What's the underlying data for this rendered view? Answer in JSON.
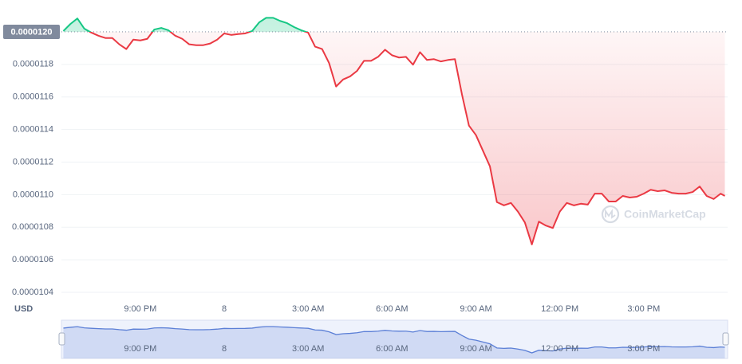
{
  "chart_data": {
    "type": "line",
    "y_unit": "USD",
    "watermark": "CoinMarketCap",
    "reference_line": {
      "value": 1.2e-05,
      "label": "0.0000120"
    },
    "color_above": "#16c784",
    "color_below": "#ea3943",
    "navigator_color": "#5b7fd6",
    "grid": true,
    "xlim": [
      18.18,
      42
    ],
    "xticks": [
      {
        "value": 21,
        "label": "9:00 PM"
      },
      {
        "value": 24,
        "label": "8"
      },
      {
        "value": 27,
        "label": "3:00 AM"
      },
      {
        "value": 30,
        "label": "6:00 AM"
      },
      {
        "value": 33,
        "label": "9:00 AM"
      },
      {
        "value": 36,
        "label": "12:00 PM"
      },
      {
        "value": 39,
        "label": "3:00 PM"
      }
    ],
    "ylim": [
      1.04e-05,
      1.21e-05
    ],
    "yticks": [
      1.04e-05,
      1.06e-05,
      1.08e-05,
      {
        "value": 1.1e-05,
        "label": "0.0000110"
      },
      1.12e-05,
      1.14e-05,
      1.16e-05,
      1.18e-05
    ],
    "x": [
      18.25,
      18.5,
      18.75,
      19,
      19.25,
      19.5,
      19.75,
      20,
      20.25,
      20.5,
      20.75,
      21,
      21.25,
      21.5,
      21.75,
      22,
      22.25,
      22.5,
      22.75,
      23,
      23.25,
      23.5,
      23.75,
      24,
      24.25,
      24.5,
      24.75,
      25,
      25.25,
      25.5,
      25.75,
      26,
      26.25,
      26.5,
      26.75,
      27,
      27.25,
      27.5,
      27.75,
      28,
      28.25,
      28.5,
      28.75,
      29,
      29.25,
      29.5,
      29.75,
      30,
      30.25,
      30.5,
      30.75,
      31,
      31.25,
      31.5,
      31.75,
      32,
      32.25,
      32.5,
      32.75,
      33,
      33.25,
      33.5,
      33.75,
      34,
      34.25,
      34.5,
      34.75,
      35,
      35.25,
      35.5,
      35.75,
      36,
      36.25,
      36.5,
      36.75,
      37,
      37.25,
      37.5,
      37.75,
      38,
      38.25,
      38.5,
      38.75,
      39,
      39.25,
      39.5,
      39.75,
      40,
      40.25,
      40.5,
      40.75,
      41,
      41.25,
      41.5,
      41.75,
      41.9
    ],
    "values": [
      1.2005e-05,
      1.2048e-05,
      1.2082e-05,
      1.2019e-05,
      1.1995e-05,
      1.1976e-05,
      1.1962e-05,
      1.1962e-05,
      1.1923e-05,
      1.1894e-05,
      1.1952e-05,
      1.1947e-05,
      1.1957e-05,
      1.2014e-05,
      1.2024e-05,
      1.201e-05,
      1.1976e-05,
      1.1957e-05,
      1.1923e-05,
      1.1918e-05,
      1.1918e-05,
      1.1928e-05,
      1.1952e-05,
      1.199e-05,
      1.1981e-05,
      1.1986e-05,
      1.199e-05,
      1.2005e-05,
      1.2058e-05,
      1.2086e-05,
      1.2086e-05,
      1.2067e-05,
      1.2053e-05,
      1.2029e-05,
      1.201e-05,
      1.1995e-05,
      1.1909e-05,
      1.1894e-05,
      1.1808e-05,
      1.1664e-05,
      1.1707e-05,
      1.1726e-05,
      1.176e-05,
      1.1822e-05,
      1.1822e-05,
      1.1846e-05,
      1.189e-05,
      1.1856e-05,
      1.1842e-05,
      1.1846e-05,
      1.1798e-05,
      1.1875e-05,
      1.1827e-05,
      1.1832e-05,
      1.1818e-05,
      1.1827e-05,
      1.1832e-05,
      1.1616e-05,
      1.1424e-05,
      1.1366e-05,
      1.127e-05,
      1.1174e-05,
      1.0954e-05,
      1.0934e-05,
      1.0949e-05,
      1.0896e-05,
      1.0829e-05,
      1.0694e-05,
      1.0834e-05,
      1.081e-05,
      1.0795e-05,
      1.0896e-05,
      1.0949e-05,
      1.0934e-05,
      1.0944e-05,
      1.0939e-05,
      1.1006e-05,
      1.1006e-05,
      1.0958e-05,
      1.0958e-05,
      1.0992e-05,
      1.0982e-05,
      1.0987e-05,
      1.1006e-05,
      1.103e-05,
      1.1021e-05,
      1.1026e-05,
      1.1011e-05,
      1.1006e-05,
      1.1006e-05,
      1.1016e-05,
      1.105e-05,
      1.0992e-05,
      1.0973e-05,
      1.1006e-05,
      1.0992e-05
    ]
  }
}
